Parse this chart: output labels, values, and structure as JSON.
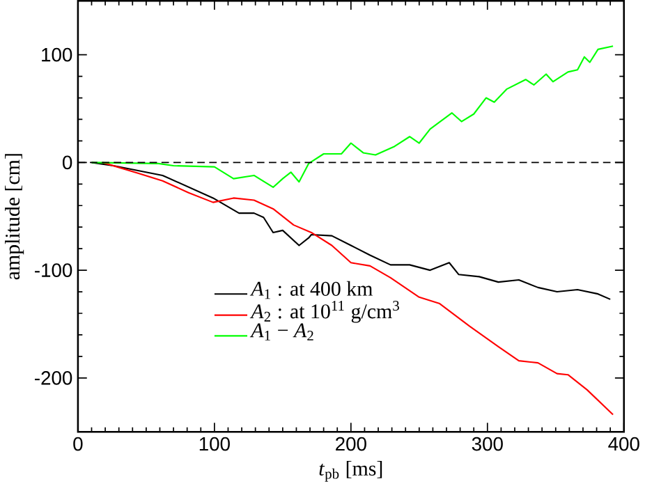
{
  "chart_data": {
    "type": "line",
    "xlabel": "*t*$_{pb}$ [ms]",
    "ylabel": "amplitude [cm]",
    "xlim": [
      0,
      400
    ],
    "ylim": [
      -250,
      150
    ],
    "xticks": [
      0,
      100,
      200,
      300,
      400
    ],
    "yticks": [
      -200,
      -100,
      0,
      100
    ],
    "legend": "bottom left",
    "line_style": "solid",
    "marker": "none",
    "ref_lines": [
      {
        "axis": "y",
        "value": 0,
        "color": "#000000",
        "line_style": "dashed"
      }
    ],
    "series": [
      {
        "name": "*A*$_{1}$ : at 400 km",
        "color": "#000000",
        "x": [
          10,
          26,
          62,
          99,
          118,
          129,
          136,
          143,
          150,
          162,
          169,
          171,
          186,
          200,
          214,
          229,
          243,
          258,
          272,
          279,
          294,
          308,
          323,
          337,
          351,
          366,
          381,
          390
        ],
        "values": [
          0,
          -3,
          -12,
          -33,
          -47,
          -47,
          -51,
          -65,
          -63,
          -77,
          -70,
          -67,
          -68,
          -77,
          -86,
          -95,
          -95,
          -100,
          -93,
          -104,
          -106,
          -111,
          -109,
          -116,
          -120,
          -118,
          -122,
          -127
        ]
      },
      {
        "name": "*A*$_{2}$ : at 10$^{11}$ g/cm$^{3}$",
        "color": "#ff0000",
        "x": [
          18,
          44,
          62,
          81,
          99,
          114,
          129,
          143,
          158,
          171,
          186,
          200,
          214,
          229,
          250,
          265,
          287,
          308,
          323,
          337,
          351,
          359,
          373,
          392
        ],
        "values": [
          0,
          -10,
          -17,
          -28,
          -37,
          -33,
          -35,
          -43,
          -58,
          -65,
          -77,
          -93,
          -96,
          -107,
          -125,
          -131,
          -152,
          -171,
          -184,
          -186,
          -196,
          -197,
          -211,
          -234
        ]
      },
      {
        "name": "*A*$_{1}$ − *A*$_{2}$",
        "color": "#00ff00",
        "x": [
          10,
          59,
          70,
          100,
          114,
          129,
          143,
          150,
          156,
          162,
          169,
          180,
          193,
          200,
          209,
          218,
          232,
          243,
          250,
          258,
          274,
          281,
          290,
          299,
          305,
          314,
          328,
          334,
          343,
          348,
          359,
          366,
          371,
          375,
          381,
          392
        ],
        "values": [
          0,
          -1,
          -3,
          -4,
          -15,
          -12,
          -23,
          -15,
          -9,
          -18,
          -1,
          8,
          8,
          18,
          9,
          7,
          15,
          24,
          18,
          31,
          46,
          38,
          45,
          60,
          56,
          68,
          77,
          72,
          82,
          75,
          84,
          86,
          98,
          93,
          105,
          108
        ]
      }
    ]
  }
}
